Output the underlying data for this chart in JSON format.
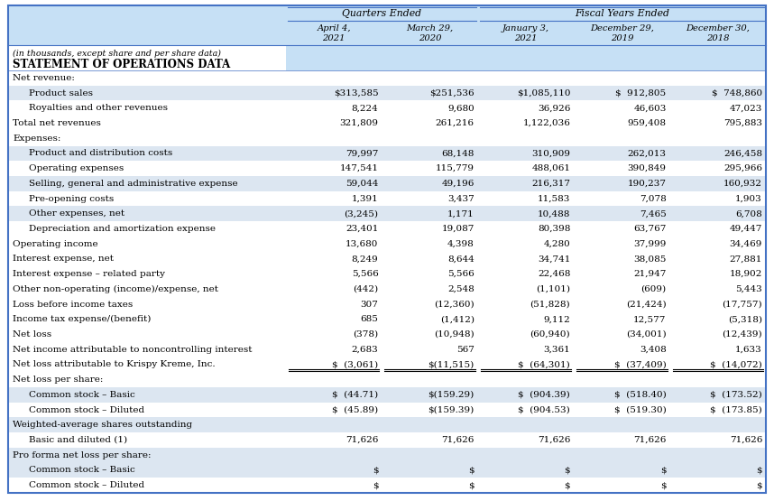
{
  "title_note": "(in thousands, except share and per share data)",
  "title_main": "STATEMENT OF OPERATIONS DATA",
  "header_group1": "Quarters Ended",
  "header_group2": "Fiscal Years Ended",
  "col_headers": [
    "April 4,\n2021",
    "March 29,\n2020",
    "January 3,\n2021",
    "December 29,\n2019",
    "December 30,\n2018"
  ],
  "rows": [
    {
      "label": "Net revenue:",
      "indent": 0,
      "values": [
        "",
        "",
        "",
        "",
        ""
      ],
      "bg": "white",
      "underline": false
    },
    {
      "label": "Product sales",
      "indent": 1,
      "values": [
        "$313,585",
        "$251,536",
        "$1,085,110",
        "$  912,805",
        "$  748,860"
      ],
      "bg": "blue",
      "underline": false
    },
    {
      "label": "Royalties and other revenues",
      "indent": 1,
      "values": [
        "8,224",
        "9,680",
        "36,926",
        "46,603",
        "47,023"
      ],
      "bg": "white",
      "underline": false
    },
    {
      "label": "Total net revenues",
      "indent": 0,
      "values": [
        "321,809",
        "261,216",
        "1,122,036",
        "959,408",
        "795,883"
      ],
      "bg": "white",
      "underline": false
    },
    {
      "label": "Expenses:",
      "indent": 0,
      "values": [
        "",
        "",
        "",
        "",
        ""
      ],
      "bg": "white",
      "underline": false
    },
    {
      "label": "Product and distribution costs",
      "indent": 1,
      "values": [
        "79,997",
        "68,148",
        "310,909",
        "262,013",
        "246,458"
      ],
      "bg": "blue",
      "underline": false
    },
    {
      "label": "Operating expenses",
      "indent": 1,
      "values": [
        "147,541",
        "115,779",
        "488,061",
        "390,849",
        "295,966"
      ],
      "bg": "white",
      "underline": false
    },
    {
      "label": "Selling, general and administrative expense",
      "indent": 1,
      "values": [
        "59,044",
        "49,196",
        "216,317",
        "190,237",
        "160,932"
      ],
      "bg": "blue",
      "underline": false
    },
    {
      "label": "Pre-opening costs",
      "indent": 1,
      "values": [
        "1,391",
        "3,437",
        "11,583",
        "7,078",
        "1,903"
      ],
      "bg": "white",
      "underline": false
    },
    {
      "label": "Other expenses, net",
      "indent": 1,
      "values": [
        "(3,245)",
        "1,171",
        "10,488",
        "7,465",
        "6,708"
      ],
      "bg": "blue",
      "underline": false
    },
    {
      "label": "Depreciation and amortization expense",
      "indent": 1,
      "values": [
        "23,401",
        "19,087",
        "80,398",
        "63,767",
        "49,447"
      ],
      "bg": "white",
      "underline": false
    },
    {
      "label": "Operating income",
      "indent": 0,
      "values": [
        "13,680",
        "4,398",
        "4,280",
        "37,999",
        "34,469"
      ],
      "bg": "white",
      "underline": false
    },
    {
      "label": "Interest expense, net",
      "indent": 0,
      "values": [
        "8,249",
        "8,644",
        "34,741",
        "38,085",
        "27,881"
      ],
      "bg": "white",
      "underline": false
    },
    {
      "label": "Interest expense – related party",
      "indent": 0,
      "values": [
        "5,566",
        "5,566",
        "22,468",
        "21,947",
        "18,902"
      ],
      "bg": "white",
      "underline": false
    },
    {
      "label": "Other non-operating (income)/expense, net",
      "indent": 0,
      "values": [
        "(442)",
        "2,548",
        "(1,101)",
        "(609)",
        "5,443"
      ],
      "bg": "white",
      "underline": false
    },
    {
      "label": "Loss before income taxes",
      "indent": 0,
      "values": [
        "307",
        "(12,360)",
        "(51,828)",
        "(21,424)",
        "(17,757)"
      ],
      "bg": "white",
      "underline": false
    },
    {
      "label": "Income tax expense/(benefit)",
      "indent": 0,
      "values": [
        "685",
        "(1,412)",
        "9,112",
        "12,577",
        "(5,318)"
      ],
      "bg": "white",
      "underline": false
    },
    {
      "label": "Net loss",
      "indent": 0,
      "values": [
        "(378)",
        "(10,948)",
        "(60,940)",
        "(34,001)",
        "(12,439)"
      ],
      "bg": "white",
      "underline": false
    },
    {
      "label": "Net income attributable to noncontrolling interest",
      "indent": 0,
      "values": [
        "2,683",
        "567",
        "3,361",
        "3,408",
        "1,633"
      ],
      "bg": "white",
      "underline": false
    },
    {
      "label": "Net loss attributable to Krispy Kreme, Inc.",
      "indent": 0,
      "values": [
        "$  (3,061)",
        "$(11,515)",
        "$  (64,301)",
        "$  (37,409)",
        "$  (14,072)"
      ],
      "bg": "white",
      "underline": true
    },
    {
      "label": "Net loss per share:",
      "indent": 0,
      "values": [
        "",
        "",
        "",
        "",
        ""
      ],
      "bg": "white",
      "underline": false
    },
    {
      "label": "Common stock – Basic",
      "indent": 1,
      "values": [
        "$  (44.71)",
        "$(159.29)",
        "$  (904.39)",
        "$  (518.40)",
        "$  (173.52)"
      ],
      "bg": "blue",
      "underline": false
    },
    {
      "label": "Common stock – Diluted",
      "indent": 1,
      "values": [
        "$  (45.89)",
        "$(159.39)",
        "$  (904.53)",
        "$  (519.30)",
        "$  (173.85)"
      ],
      "bg": "white",
      "underline": false
    },
    {
      "label": "Weighted-average shares outstanding",
      "indent": 0,
      "values": [
        "",
        "",
        "",
        "",
        ""
      ],
      "bg": "blue",
      "underline": false
    },
    {
      "label": "Basic and diluted (1)",
      "indent": 1,
      "values": [
        "71,626",
        "71,626",
        "71,626",
        "71,626",
        "71,626"
      ],
      "bg": "white",
      "underline": false
    },
    {
      "label": "Pro forma net loss per share:",
      "indent": 0,
      "values": [
        "",
        "",
        "",
        "",
        ""
      ],
      "bg": "blue",
      "underline": false
    },
    {
      "label": "Common stock – Basic",
      "indent": 1,
      "values": [
        "$",
        "$",
        "$",
        "$",
        "$"
      ],
      "bg": "blue",
      "underline": false
    },
    {
      "label": "Common stock – Diluted",
      "indent": 1,
      "values": [
        "$",
        "$",
        "$",
        "$",
        "$"
      ],
      "bg": "white",
      "underline": false
    }
  ],
  "bg_light_blue": "#dce6f1",
  "bg_header_blue": "#c6e0f5",
  "bg_white": "#ffffff",
  "border_color": "#4472c4",
  "text_color": "#000000",
  "font_size": 7.5,
  "header_font_size": 7.8
}
